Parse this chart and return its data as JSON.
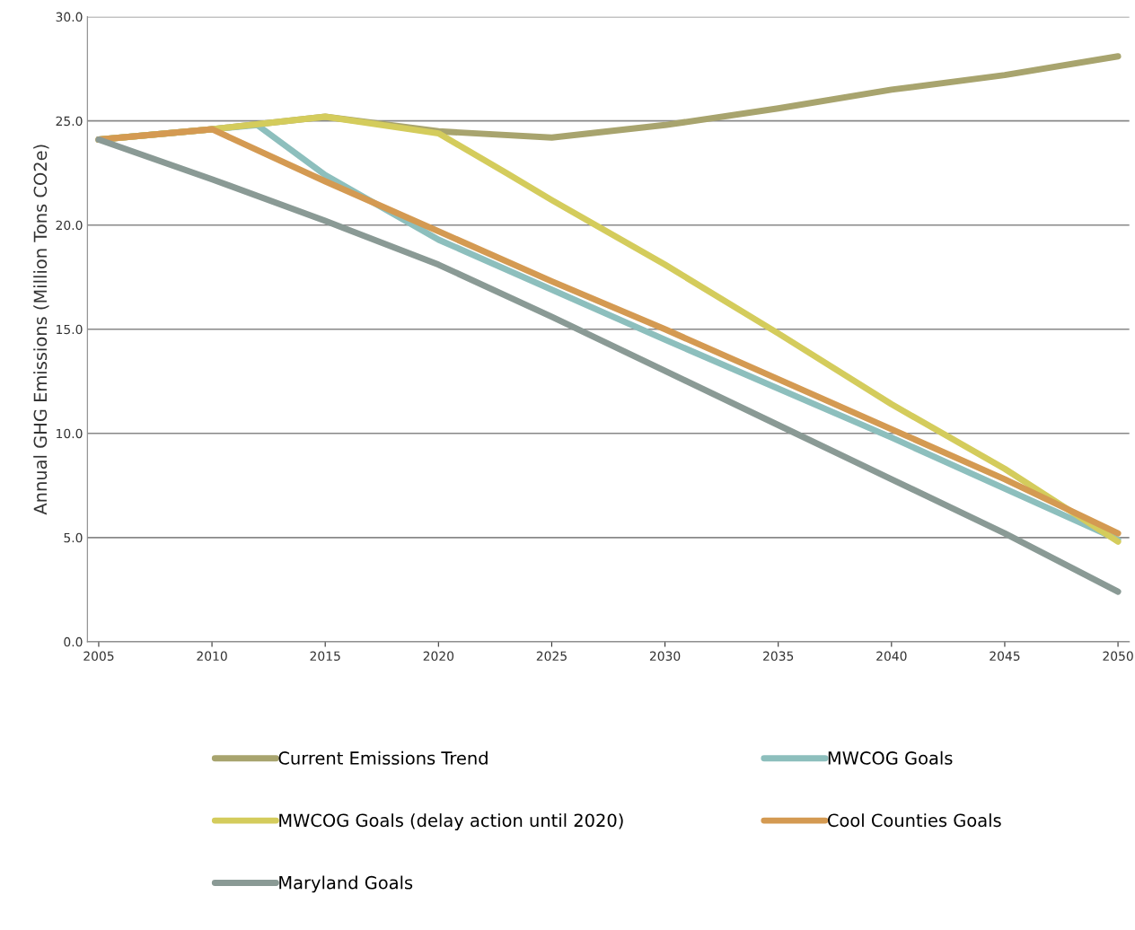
{
  "chart_data": {
    "type": "line",
    "ylabel": "Annual GHG Emissions (Million Tons CO2e)",
    "xlim": [
      2004.5,
      2050.5
    ],
    "xticks": [
      2005,
      2010,
      2015,
      2020,
      2025,
      2030,
      2035,
      2040,
      2045,
      2050
    ],
    "ylim": [
      0,
      30
    ],
    "yticks": [
      {
        "value": 0,
        "label": "0.0"
      },
      {
        "value": 5,
        "label": "5.0"
      },
      {
        "value": 10,
        "label": "10.0"
      },
      {
        "value": 15,
        "label": "15.0"
      },
      {
        "value": 20,
        "label": "20.0"
      },
      {
        "value": 25,
        "label": "25.0"
      },
      {
        "value": 30,
        "label": "30.0"
      }
    ],
    "grid": "y",
    "legend": "bottom",
    "marker": "none",
    "line_style": "solid",
    "series": [
      {
        "name": "Current Emissions Trend",
        "color": "#a8a46e",
        "x": [
          2005,
          2010,
          2015,
          2020,
          2025,
          2030,
          2035,
          2040,
          2045,
          2050
        ],
        "values": [
          24.1,
          24.6,
          25.2,
          24.5,
          24.2,
          24.8,
          25.6,
          26.5,
          27.2,
          28.1
        ]
      },
      {
        "name": "MWCOG Goals",
        "color": "#8dbfbd",
        "x": [
          2005,
          2012,
          2015,
          2020,
          2030,
          2040,
          2050
        ],
        "values": [
          24.1,
          24.8,
          22.4,
          19.3,
          14.5,
          9.8,
          4.9
        ]
      },
      {
        "name": "MWCOG Goals (delay action until 2020)",
        "color": "#d4cc5c",
        "x": [
          2005,
          2010,
          2015,
          2020,
          2023,
          2025,
          2030,
          2035,
          2040,
          2045,
          2050
        ],
        "values": [
          24.1,
          24.6,
          25.2,
          24.4,
          22.5,
          21.2,
          18.1,
          14.8,
          11.4,
          8.3,
          4.8
        ]
      },
      {
        "name": "Cool Counties Goals",
        "color": "#d49a52",
        "x": [
          2005,
          2010,
          2015,
          2020,
          2025,
          2030,
          2035,
          2040,
          2045,
          2050
        ],
        "values": [
          24.1,
          24.6,
          22.1,
          19.7,
          17.3,
          15.0,
          12.6,
          10.2,
          7.8,
          5.2
        ]
      },
      {
        "name": "Maryland Goals",
        "color": "#8a9a95",
        "x": [
          2005,
          2010,
          2015,
          2020,
          2025,
          2030,
          2035,
          2040,
          2045,
          2050
        ],
        "values": [
          24.1,
          22.2,
          20.2,
          18.1,
          15.6,
          13.0,
          10.4,
          7.8,
          5.2,
          2.4
        ]
      }
    ]
  }
}
